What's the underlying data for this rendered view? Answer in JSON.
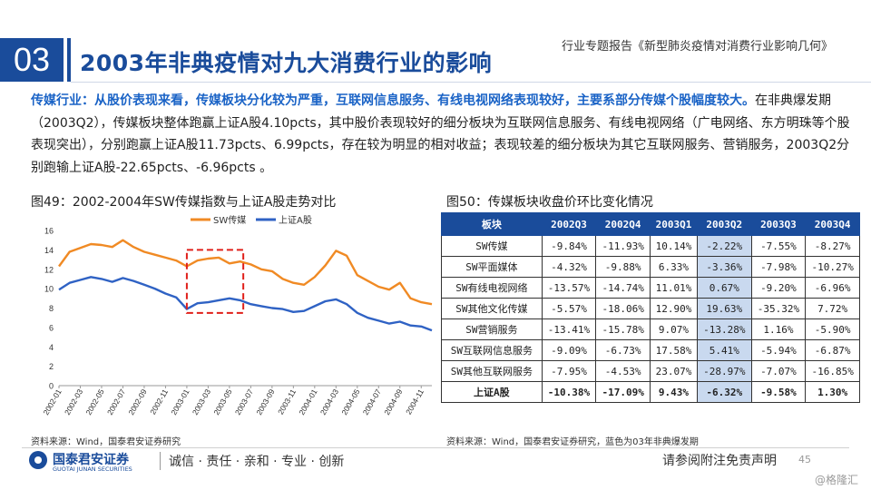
{
  "header": {
    "section_number": "03",
    "title": "2003年非典疫情对九大消费行业的影响",
    "report_name": "行业专题报告《新型肺炎疫情对消费行业影响几何》"
  },
  "paragraph": {
    "highlight": "传媒行业：从股价表现来看，传媒板块分化较为严重，互联网信息服务、有线电视网络表现较好，主要系部分传媒个股幅度较大。",
    "body": "在非典爆发期（2003Q2），传媒板块整体跑赢上证A股4.10pcts，其中股价表现较好的细分板块为互联网信息服务、有线电视网络（广电网络、东方明珠等个股表现突出），分别跑赢上证A股11.73pcts、6.99pcts，存在较为明显的相对收益；表现较差的细分板块为其它互联网服务、营销服务，2003Q2分别跑输上证A股-22.65pcts、-6.96pcts 。"
  },
  "figure49": {
    "title": "图49：2002-2004年SW传媒指数与上证A股走势对比",
    "source": "资料来源：Wind，国泰君安证券研究"
  },
  "figure50": {
    "title": "图50：传媒板块收盘价环比变化情况",
    "source": "资料来源：Wind，国泰君安证券研究，蓝色为03年非典爆发期",
    "columns": [
      "板块",
      "2002Q3",
      "2002Q4",
      "2003Q1",
      "2003Q2",
      "2003Q3",
      "2003Q4"
    ],
    "rows": [
      {
        "name": "SW传媒",
        "values": [
          "-9.84%",
          "-11.93%",
          "10.14%",
          "-2.22%",
          "-7.55%",
          "-8.27%"
        ]
      },
      {
        "name": "SW平面媒体",
        "values": [
          "-4.32%",
          "-9.88%",
          "6.33%",
          "-3.36%",
          "-7.98%",
          "-10.27%"
        ]
      },
      {
        "name": "SW有线电视网络",
        "values": [
          "-13.57%",
          "-14.74%",
          "11.01%",
          "0.67%",
          "-9.20%",
          "-6.96%"
        ]
      },
      {
        "name": "SW其他文化传媒",
        "values": [
          "-5.57%",
          "-18.06%",
          "12.90%",
          "19.63%",
          "-35.32%",
          "7.72%"
        ]
      },
      {
        "name": "SW营销服务",
        "values": [
          "-13.41%",
          "-15.78%",
          "9.07%",
          "-13.28%",
          "1.16%",
          "-5.90%"
        ]
      },
      {
        "name": "SW互联网信息服务",
        "values": [
          "-9.09%",
          "-6.73%",
          "17.58%",
          "5.41%",
          "-5.94%",
          "-6.87%"
        ]
      },
      {
        "name": "SW其他互联网服务",
        "values": [
          "-7.95%",
          "-4.53%",
          "23.07%",
          "-28.97%",
          "-7.07%",
          "-16.85%"
        ]
      },
      {
        "name": "上证A股",
        "values": [
          "-10.38%",
          "-17.09%",
          "9.43%",
          "-6.32%",
          "-9.58%",
          "1.30%"
        ]
      }
    ]
  },
  "footer": {
    "logo_cn": "国泰君安证券",
    "logo_en": "GUOTAI JUNAN SECURITIES",
    "slogan": "诚信 · 责任 · 亲和 · 专业 · 创新",
    "disclaimer": "请参阅附注免责声明",
    "page_number": "45",
    "watermark": "@格隆汇"
  },
  "colors": {
    "brand_blue": "#1a4c9b",
    "series_sw": "#f08a24",
    "series_sh": "#2f62c4",
    "highlight_box": "#e0201b",
    "highlight_cell": "#c9d9ef"
  },
  "chart_data": {
    "type": "line",
    "title": "",
    "xlabel": "",
    "ylabel": "",
    "ylim": [
      0,
      16
    ],
    "yticks": [
      0,
      2,
      4,
      6,
      8,
      10,
      12,
      14,
      16
    ],
    "xticks": [
      "2002-01",
      "2002-03",
      "2002-05",
      "2002-07",
      "2002-09",
      "2002-11",
      "2003-01",
      "2003-03",
      "2003-05",
      "2003-07",
      "2003-09",
      "2003-11",
      "2004-01",
      "2004-03",
      "2004-05",
      "2004-07",
      "2004-09",
      "2004-11"
    ],
    "legend_position": "top",
    "grid": false,
    "highlight_period": [
      "2003-01",
      "2003-05"
    ],
    "series": [
      {
        "name": "SW传媒",
        "color": "#f08a24",
        "x": [
          "2002-01",
          "2002-02",
          "2002-03",
          "2002-04",
          "2002-05",
          "2002-06",
          "2002-07",
          "2002-08",
          "2002-09",
          "2002-10",
          "2002-11",
          "2002-12",
          "2003-01",
          "2003-02",
          "2003-03",
          "2003-04",
          "2003-05",
          "2003-06",
          "2003-07",
          "2003-08",
          "2003-09",
          "2003-10",
          "2003-11",
          "2003-12",
          "2004-01",
          "2004-02",
          "2004-03",
          "2004-04",
          "2004-05",
          "2004-06",
          "2004-07",
          "2004-08",
          "2004-09",
          "2004-10",
          "2004-11",
          "2004-12"
        ],
        "values": [
          12.3,
          13.8,
          14.2,
          14.6,
          14.5,
          14.3,
          15.0,
          14.3,
          13.8,
          13.5,
          13.2,
          12.9,
          12.3,
          12.9,
          13.1,
          13.2,
          12.6,
          12.8,
          12.5,
          12.0,
          11.8,
          11.0,
          10.6,
          10.4,
          11.2,
          12.4,
          13.9,
          13.4,
          11.4,
          10.8,
          10.2,
          9.9,
          10.6,
          9.0,
          8.6,
          8.4
        ]
      },
      {
        "name": "上证A股",
        "color": "#2f62c4",
        "x": [
          "2002-01",
          "2002-02",
          "2002-03",
          "2002-04",
          "2002-05",
          "2002-06",
          "2002-07",
          "2002-08",
          "2002-09",
          "2002-10",
          "2002-11",
          "2002-12",
          "2003-01",
          "2003-02",
          "2003-03",
          "2003-04",
          "2003-05",
          "2003-06",
          "2003-07",
          "2003-08",
          "2003-09",
          "2003-10",
          "2003-11",
          "2003-12",
          "2004-01",
          "2004-02",
          "2004-03",
          "2004-04",
          "2004-05",
          "2004-06",
          "2004-07",
          "2004-08",
          "2004-09",
          "2004-10",
          "2004-11",
          "2004-12"
        ],
        "values": [
          9.9,
          10.6,
          10.9,
          11.2,
          11.0,
          10.7,
          11.1,
          10.8,
          10.4,
          10.0,
          9.5,
          9.1,
          7.9,
          8.5,
          8.6,
          8.8,
          9.0,
          8.8,
          8.4,
          8.2,
          8.0,
          7.9,
          7.6,
          7.7,
          8.2,
          8.7,
          8.9,
          8.4,
          7.5,
          7.0,
          6.7,
          6.4,
          6.6,
          6.2,
          6.1,
          5.7
        ]
      }
    ]
  }
}
